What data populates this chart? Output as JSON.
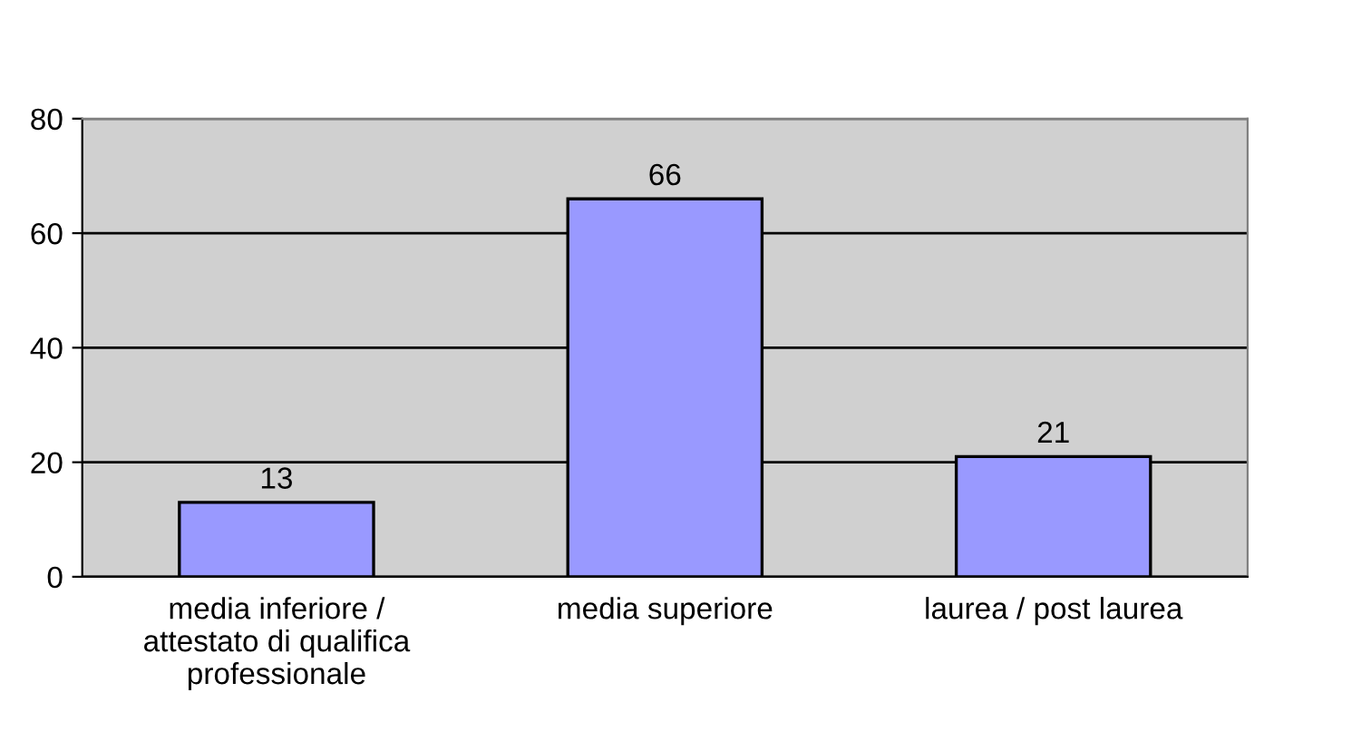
{
  "chart_data": {
    "type": "bar",
    "categories": [
      "media inferiore /\nattestato di qualifica\nprofessionale",
      "media superiore",
      "laurea / post laurea"
    ],
    "values": [
      13,
      66,
      21
    ],
    "color": "#9999ff",
    "ylim": [
      0,
      80
    ],
    "yticks": [
      0,
      20,
      40,
      60,
      80
    ],
    "grid": "y",
    "data_labels": true
  }
}
